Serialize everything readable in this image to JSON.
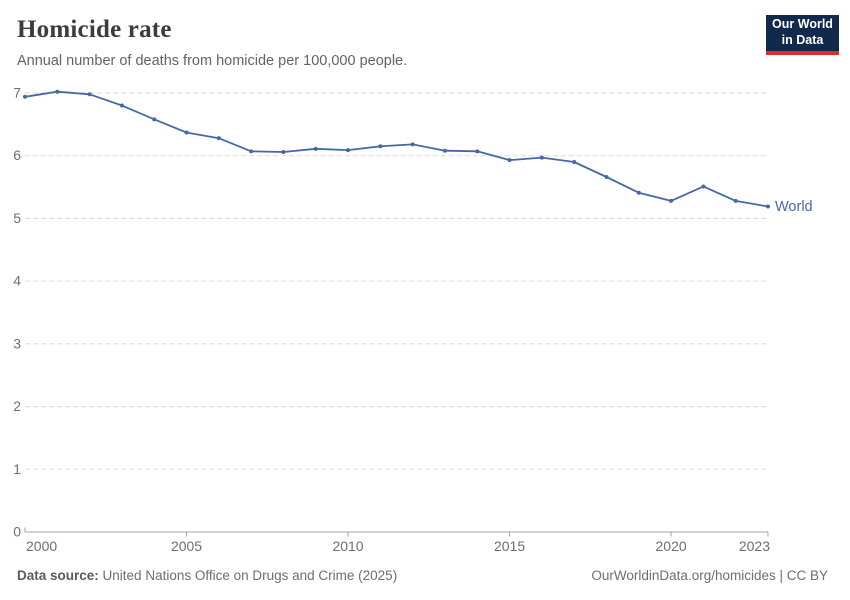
{
  "header": {
    "title": "Homicide rate",
    "subtitle": "Annual number of deaths from homicide per 100,000 people."
  },
  "logo": {
    "line1": "Our World",
    "line2": "in Data"
  },
  "chart_data": {
    "type": "line",
    "title": "Homicide rate",
    "subtitle": "Annual number of deaths from homicide per 100,000 people.",
    "xlabel": "",
    "ylabel": "",
    "ylim": [
      0,
      7
    ],
    "yticks": [
      0,
      1,
      2,
      3,
      4,
      5,
      6,
      7
    ],
    "xticks": [
      2000,
      2005,
      2010,
      2015,
      2020,
      2023
    ],
    "grid": "horizontal-dashed",
    "legend": "inline-end-label",
    "series": [
      {
        "name": "World",
        "color": "#4669a5",
        "x": [
          2000,
          2001,
          2002,
          2003,
          2004,
          2005,
          2006,
          2007,
          2008,
          2009,
          2010,
          2011,
          2012,
          2013,
          2014,
          2015,
          2016,
          2017,
          2018,
          2019,
          2020,
          2021,
          2022,
          2023
        ],
        "values": [
          6.94,
          7.02,
          6.98,
          6.8,
          6.58,
          6.37,
          6.28,
          6.07,
          6.06,
          6.11,
          6.09,
          6.15,
          6.18,
          6.08,
          6.07,
          5.93,
          5.97,
          5.9,
          5.66,
          5.41,
          5.28,
          5.51,
          5.28,
          5.19
        ]
      }
    ]
  },
  "footer": {
    "source_label": "Data source:",
    "source_value": "United Nations Office on Drugs and Crime (2025)",
    "link": "OurWorldinData.org/homicides | CC BY"
  },
  "colors": {
    "series": "#4669a5",
    "gridline": "#dadada",
    "axis_line": "#a5a5a5",
    "tick_text": "#6e6e6e",
    "title_text": "#383d42",
    "subtitle_text": "#636363",
    "logo_bg": "#12294e",
    "logo_accent": "#dc2c2c"
  }
}
